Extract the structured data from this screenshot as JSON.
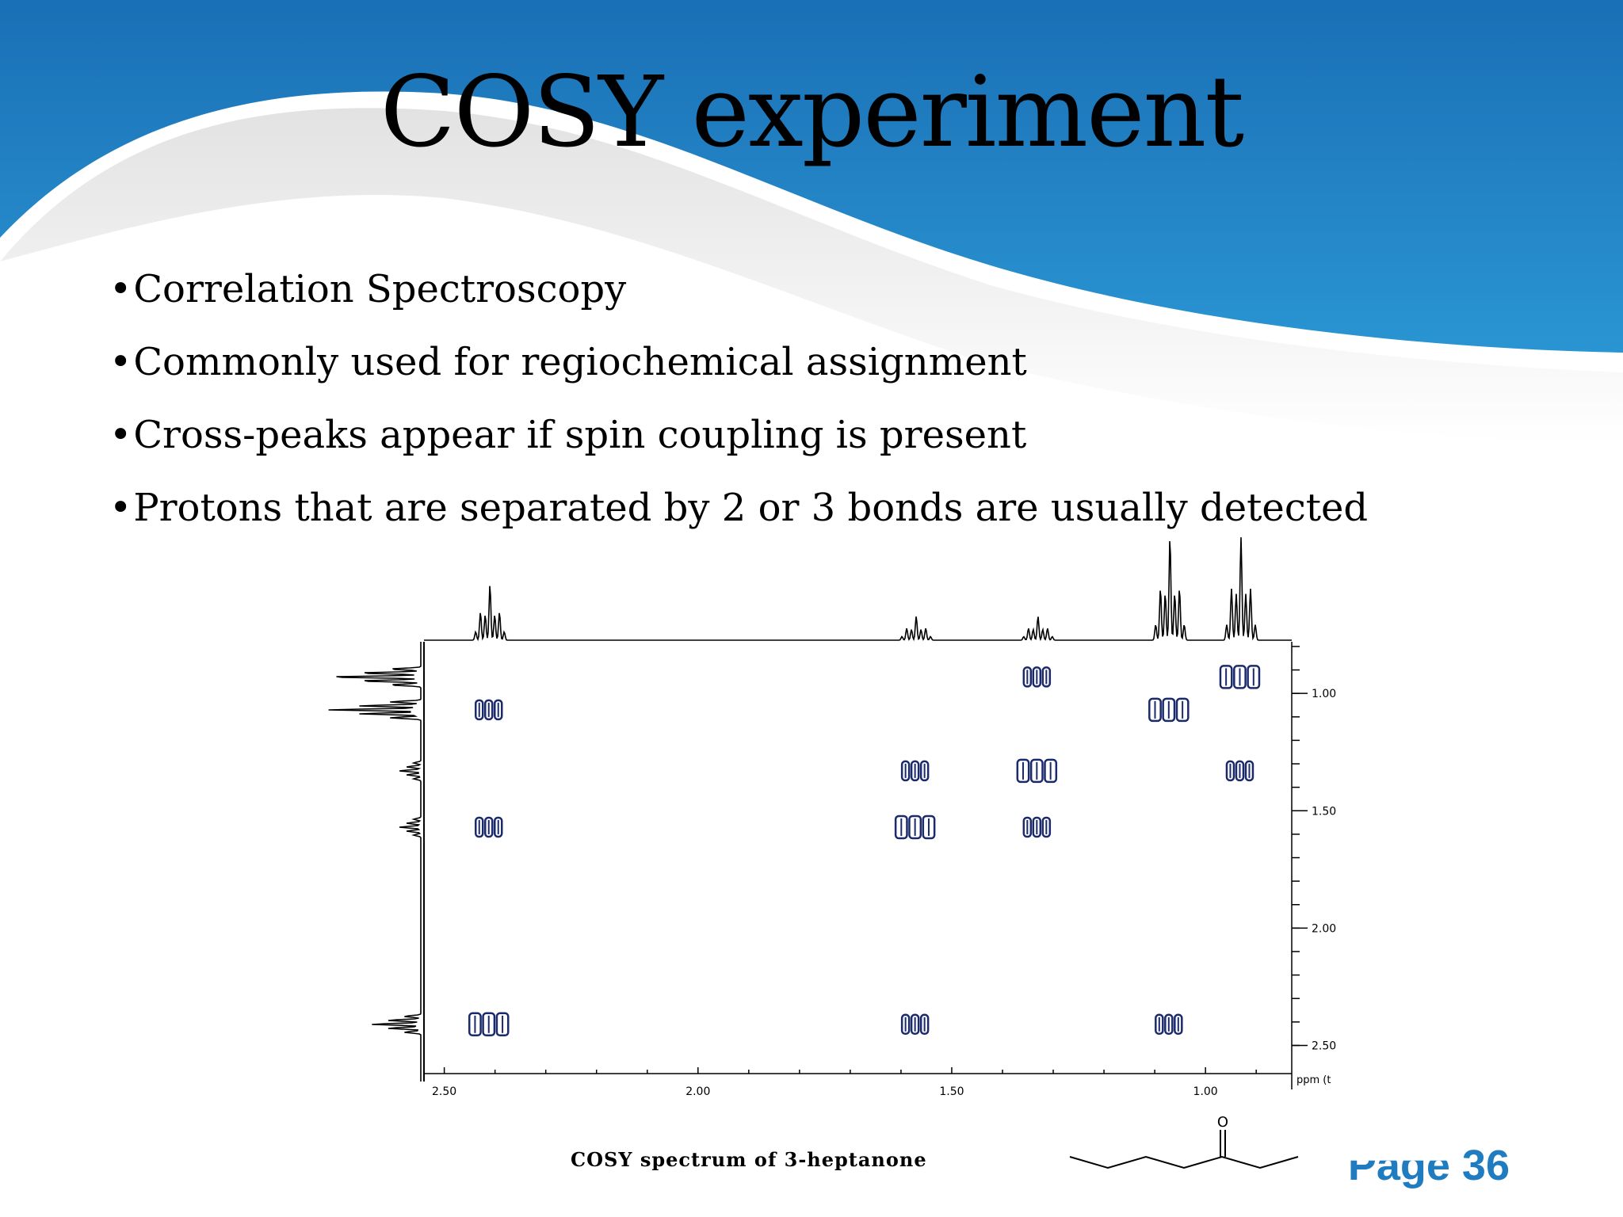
{
  "slide": {
    "title": "COSY experiment",
    "bullets": [
      "Correlation Spectroscopy",
      "Commonly used for regiochemical assignment",
      "Cross-peaks appear if spin coupling is present",
      "Protons that are separated by 2 or 3 bonds are usually detected"
    ],
    "page_word": "Page",
    "page_number": "36"
  },
  "chart_data": {
    "type": "heatmap",
    "title": "",
    "caption": "COSY spectrum of 3-heptanone",
    "x_ticks": [
      "2.50",
      "2.00",
      "1.50",
      "1.00"
    ],
    "y_ticks": [
      "1.00",
      "1.50",
      "2.00",
      "2.50"
    ],
    "y_unit_label": "ppm (t",
    "x_range_ppm": [
      2.54,
      0.83
    ],
    "y_range_ppm": [
      0.78,
      2.62
    ],
    "projection_peaks_ppm": [
      2.41,
      1.57,
      1.33,
      1.07,
      0.93
    ],
    "diagonal_peaks": [
      {
        "x": 2.41,
        "y": 2.41
      },
      {
        "x": 1.57,
        "y": 1.57
      },
      {
        "x": 1.33,
        "y": 1.33
      },
      {
        "x": 1.07,
        "y": 1.07
      },
      {
        "x": 0.93,
        "y": 0.93
      }
    ],
    "cross_peaks": [
      {
        "x": 2.41,
        "y": 1.07
      },
      {
        "x": 1.07,
        "y": 2.41
      },
      {
        "x": 2.41,
        "y": 1.57
      },
      {
        "x": 1.57,
        "y": 2.41
      },
      {
        "x": 1.57,
        "y": 1.33
      },
      {
        "x": 1.33,
        "y": 1.57
      },
      {
        "x": 1.33,
        "y": 0.93
      },
      {
        "x": 0.93,
        "y": 1.33
      }
    ]
  },
  "colors": {
    "wave": "#1f7cc0",
    "contour": "#1b2a6b",
    "page_number": "#1f7cc0"
  }
}
